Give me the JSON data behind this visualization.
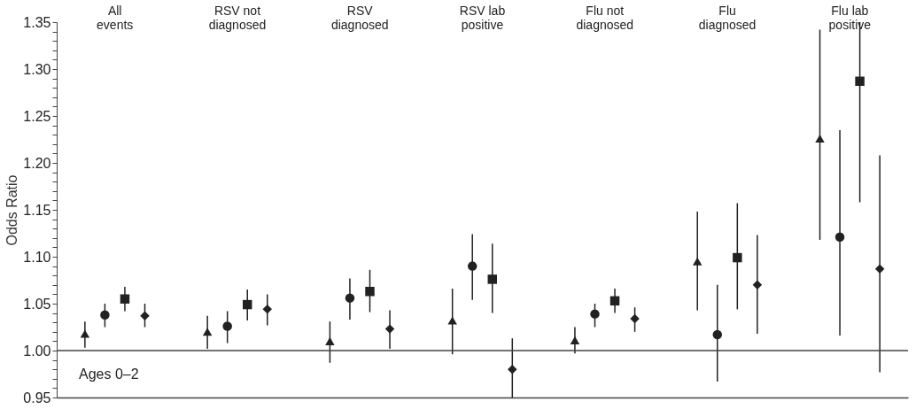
{
  "chart_data": {
    "type": "scatter",
    "ylabel": "Odds Ratio",
    "categories": [
      "All events",
      "RSV not diagnosed",
      "RSV diagnosed",
      "RSV lab positive",
      "Flu not diagnosed",
      "Flu diagnosed",
      "Flu lab positive"
    ],
    "series": [
      {
        "color": "#222222",
        "marker": "triangle",
        "values": [
          1.018,
          1.02,
          1.01,
          1.032,
          1.011,
          1.095,
          1.226
        ],
        "errors": [
          [
            1.003,
            1.031
          ],
          [
            1.002,
            1.037
          ],
          [
            0.987,
            1.031
          ],
          [
            0.996,
            1.066
          ],
          [
            0.997,
            1.025
          ],
          [
            1.043,
            1.148
          ],
          [
            1.118,
            1.342
          ]
        ]
      },
      {
        "color": "#222222",
        "marker": "circle",
        "values": [
          1.038,
          1.026,
          1.056,
          1.09,
          1.039,
          1.017,
          1.121
        ],
        "errors": [
          [
            1.025,
            1.05
          ],
          [
            1.008,
            1.042
          ],
          [
            1.033,
            1.077
          ],
          [
            1.054,
            1.124
          ],
          [
            1.025,
            1.05
          ],
          [
            0.967,
            1.07
          ],
          [
            1.016,
            1.235
          ]
        ]
      },
      {
        "color": "#222222",
        "marker": "square",
        "values": [
          1.055,
          1.049,
          1.063,
          1.076,
          1.053,
          1.099,
          1.287
        ],
        "errors": [
          [
            1.042,
            1.068
          ],
          [
            1.032,
            1.065
          ],
          [
            1.041,
            1.086
          ],
          [
            1.04,
            1.114
          ],
          [
            1.04,
            1.066
          ],
          [
            1.044,
            1.157
          ],
          [
            1.158,
            1.35
          ]
        ]
      },
      {
        "color": "#222222",
        "marker": "diamond",
        "values": [
          1.037,
          1.044,
          1.023,
          0.98,
          1.034,
          1.07,
          1.087
        ],
        "errors": [
          [
            1.025,
            1.05
          ],
          [
            1.027,
            1.06
          ],
          [
            1.002,
            1.043
          ],
          [
            0.95,
            1.013
          ],
          [
            1.02,
            1.046
          ],
          [
            1.018,
            1.123
          ],
          [
            0.977,
            1.208
          ]
        ]
      }
    ],
    "ylim": [
      0.95,
      1.35
    ],
    "yticks": [
      0.95,
      {
        "value": 0.96,
        "label": null
      },
      {
        "value": 0.97,
        "label": null
      },
      {
        "value": 0.98,
        "label": null
      },
      {
        "value": 0.99,
        "label": null
      },
      {
        "value": 1.0,
        "label": "1.00"
      },
      {
        "value": 1.01,
        "label": null
      },
      {
        "value": 1.02,
        "label": null
      },
      {
        "value": 1.03,
        "label": null
      },
      {
        "value": 1.04,
        "label": null
      },
      1.05,
      {
        "value": 1.06,
        "label": null
      },
      {
        "value": 1.07,
        "label": null
      },
      {
        "value": 1.08,
        "label": null
      },
      {
        "value": 1.09,
        "label": null
      },
      {
        "value": 1.1,
        "label": "1.10"
      },
      {
        "value": 1.11,
        "label": null
      },
      {
        "value": 1.12,
        "label": null
      },
      {
        "value": 1.13,
        "label": null
      },
      {
        "value": 1.14,
        "label": null
      },
      1.15,
      {
        "value": 1.16,
        "label": null
      },
      {
        "value": 1.17,
        "label": null
      },
      {
        "value": 1.18,
        "label": null
      },
      {
        "value": 1.19,
        "label": null
      },
      {
        "value": 1.2,
        "label": "1.20"
      },
      {
        "value": 1.21,
        "label": null
      },
      {
        "value": 1.22,
        "label": null
      },
      {
        "value": 1.23,
        "label": null
      },
      {
        "value": 1.24,
        "label": null
      },
      1.25,
      {
        "value": 1.26,
        "label": null
      },
      {
        "value": 1.27,
        "label": null
      },
      {
        "value": 1.28,
        "label": null
      },
      {
        "value": 1.29,
        "label": null
      },
      {
        "value": 1.3,
        "label": "1.30"
      },
      {
        "value": 1.31,
        "label": null
      },
      {
        "value": 1.32,
        "label": null
      },
      {
        "value": 1.33,
        "label": null
      },
      {
        "value": 1.34,
        "label": null
      },
      1.35
    ],
    "ref_lines": [
      {
        "axis": "y",
        "value": 1.0,
        "color": "#444444"
      }
    ],
    "annotations": [
      "Ages 0–2"
    ],
    "grid": false,
    "legend": false
  }
}
